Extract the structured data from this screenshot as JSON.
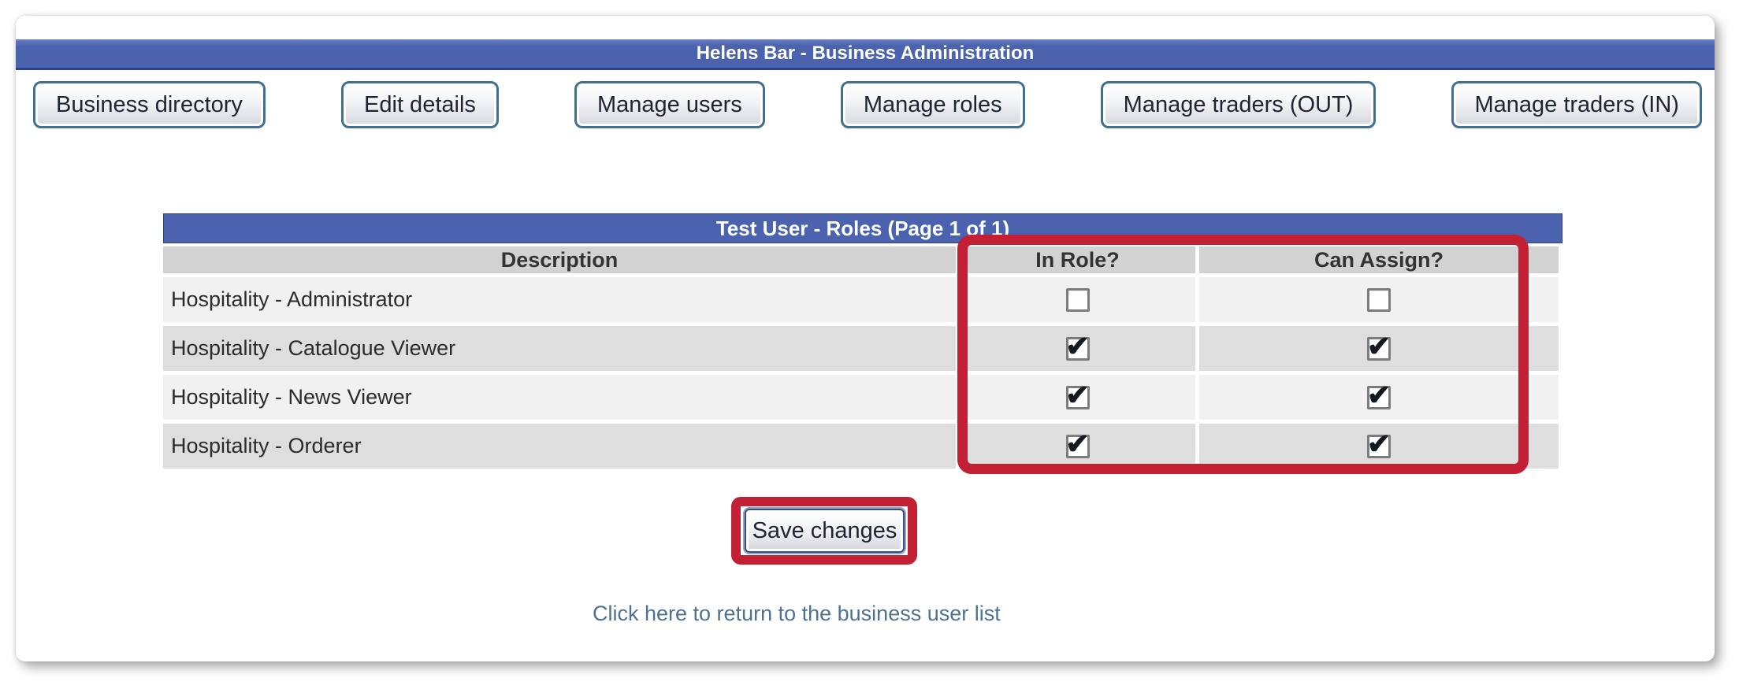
{
  "window": {
    "title": "Helens Bar - Business Administration"
  },
  "nav": {
    "buttons": [
      {
        "label": "Business directory"
      },
      {
        "label": "Edit details"
      },
      {
        "label": "Manage users"
      },
      {
        "label": "Manage roles"
      },
      {
        "label": "Manage traders (OUT)"
      },
      {
        "label": "Manage traders (IN)"
      }
    ]
  },
  "roles_panel": {
    "title": "Test User - Roles (Page 1 of 1)",
    "columns": [
      "Description",
      "In Role?",
      "Can Assign?"
    ],
    "rows": [
      {
        "description": "Hospitality - Administrator",
        "in_role": false,
        "can_assign": false
      },
      {
        "description": "Hospitality - Catalogue Viewer",
        "in_role": true,
        "can_assign": true
      },
      {
        "description": "Hospitality - News Viewer",
        "in_role": true,
        "can_assign": true
      },
      {
        "description": "Hospitality - Orderer",
        "in_role": true,
        "can_assign": true
      }
    ]
  },
  "actions": {
    "save_label": "Save changes"
  },
  "links": {
    "return_link": "Click here to return to the business user list"
  },
  "annotations": {
    "checkbox_columns_highlight": "red-rectangle",
    "save_button_highlight": "red-rectangle"
  },
  "icons": {
    "checkbox_tick": "✔"
  },
  "colors": {
    "header_blue": "#4b62ae",
    "header_blue_border": "#2e3f8e",
    "highlight_red": "#c32035",
    "row_light": "#f1f1f1",
    "row_dark": "#dedede",
    "column_header_gray": "#d2d2d2",
    "link_blue": "#4e7290",
    "button_border_steel": "#40708f",
    "save_border_navy": "#2f4f86"
  }
}
